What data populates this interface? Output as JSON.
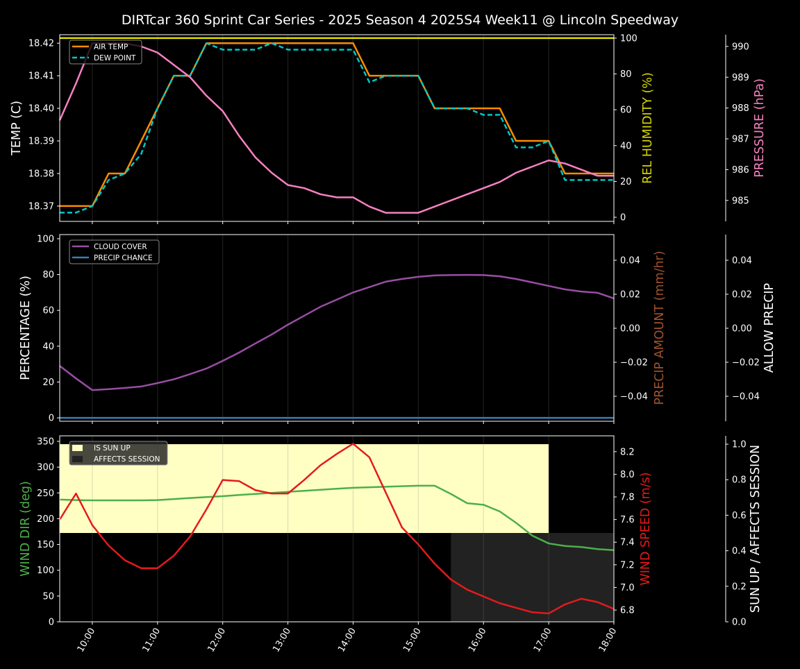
{
  "title": "DIRTcar 360 Sprint Car Series - 2025 Season 4 2025S4 Week11 @ Lincoln Speedway",
  "chart_data": [
    {
      "type": "line",
      "panel": "temperature",
      "x": [
        "09:30",
        "09:45",
        "10:00",
        "10:15",
        "10:30",
        "10:45",
        "11:00",
        "11:15",
        "11:30",
        "11:45",
        "12:00",
        "12:15",
        "12:30",
        "12:45",
        "13:00",
        "13:15",
        "13:30",
        "13:45",
        "14:00",
        "14:15",
        "14:30",
        "14:45",
        "15:00",
        "15:15",
        "15:30",
        "15:45",
        "16:00",
        "16:15",
        "16:30",
        "16:45",
        "17:00",
        "17:15",
        "17:30",
        "17:45",
        "18:00"
      ],
      "x_tick_labels": [
        "10:00",
        "11:00",
        "12:00",
        "13:00",
        "14:00",
        "15:00",
        "16:00",
        "17:00",
        "18:00"
      ],
      "ylabel": "TEMP (C)",
      "ylabel2": "REL HUMIDITY (%)",
      "ylabel3": "PRESSURE (hPa)",
      "ylim": [
        18.3653,
        18.4226
      ],
      "ylim2": [
        -2.3,
        101.9
      ],
      "ylim3": [
        984.32,
        990.38
      ],
      "yticks": [
        "18.37",
        "18.38",
        "18.39",
        "18.40",
        "18.41",
        "18.42"
      ],
      "yticks2": [
        "0",
        "20",
        "40",
        "60",
        "80",
        "100"
      ],
      "yticks3": [
        "985",
        "986",
        "987",
        "988",
        "989",
        "990"
      ],
      "legend": [
        "AIR TEMP",
        "DEW POINT"
      ],
      "legend_position": "top-left",
      "series": [
        {
          "name": "AIR TEMP",
          "axis": 1,
          "color": "#ff8c00",
          "values": [
            18.37,
            18.37,
            18.37,
            18.38,
            18.38,
            18.39,
            18.4,
            18.41,
            18.41,
            18.42,
            18.42,
            18.42,
            18.42,
            18.42,
            18.42,
            18.42,
            18.42,
            18.42,
            18.42,
            18.41,
            18.41,
            18.41,
            18.41,
            18.4,
            18.4,
            18.4,
            18.4,
            18.4,
            18.39,
            18.39,
            18.39,
            18.38,
            18.38,
            18.38,
            18.38
          ]
        },
        {
          "name": "DEW POINT",
          "axis": 1,
          "color": "#00c8c8",
          "dashed": true,
          "values": [
            18.368,
            18.368,
            18.37,
            18.378,
            18.38,
            18.386,
            18.4,
            18.41,
            18.41,
            18.42,
            18.418,
            18.418,
            18.418,
            18.42,
            18.418,
            18.418,
            18.418,
            18.418,
            18.418,
            18.408,
            18.41,
            18.41,
            18.41,
            18.4,
            18.4,
            18.4,
            18.398,
            18.398,
            18.388,
            18.388,
            18.39,
            18.378,
            18.378,
            18.378,
            18.378
          ]
        },
        {
          "name": "REL HUMIDITY",
          "axis": 2,
          "color": "#e0e000",
          "values": [
            100,
            100,
            100,
            100,
            100,
            100,
            100,
            100,
            100,
            100,
            100,
            100,
            100,
            100,
            100,
            100,
            100,
            100,
            100,
            100,
            100,
            100,
            100,
            100,
            100,
            100,
            100,
            100,
            100,
            100,
            100,
            100,
            100,
            100,
            100
          ]
        },
        {
          "name": "PRESSURE",
          "axis": 3,
          "color": "#f781bf",
          "values": [
            987.6,
            988.8,
            990.1,
            990.1,
            990.1,
            990.0,
            989.8,
            989.4,
            989.0,
            988.4,
            987.9,
            987.1,
            986.4,
            985.9,
            985.5,
            985.4,
            985.2,
            985.1,
            985.1,
            984.8,
            984.6,
            984.6,
            984.6,
            984.8,
            985.0,
            985.2,
            985.4,
            985.6,
            985.9,
            986.1,
            986.3,
            986.2,
            986.0,
            985.8,
            985.8
          ]
        }
      ]
    },
    {
      "type": "line",
      "panel": "precipitation",
      "ylabel": "PERCENTAGE (%)",
      "ylabel2": "PRECIP AMOUNT (mm/hr)",
      "ylabel3": "ALLOW PRECIP",
      "ylim": [
        -1.9,
        102.3
      ],
      "ylim2": [
        -0.0547,
        0.0551
      ],
      "ylim3": [
        -0.0547,
        0.0551
      ],
      "yticks": [
        "0",
        "20",
        "40",
        "60",
        "80",
        "100"
      ],
      "yticks2": [
        "−0.04",
        "−0.02",
        "0.00",
        "0.02",
        "0.04"
      ],
      "yticks3": [
        "−0.04",
        "−0.02",
        "0.00",
        "0.02",
        "0.04"
      ],
      "legend": [
        "CLOUD COVER",
        "PRECIP CHANCE"
      ],
      "legend_position": "top-left",
      "series": [
        {
          "name": "CLOUD COVER",
          "axis": 1,
          "color": "#984ea3",
          "values": [
            29,
            22,
            15.5,
            16,
            16.7,
            17.5,
            19.4,
            21.5,
            24.4,
            27.5,
            31.8,
            36.4,
            41.5,
            46.5,
            52,
            57,
            62,
            66,
            70,
            73,
            76,
            77.5,
            78.7,
            79.5,
            79.7,
            79.8,
            79.7,
            79,
            77.5,
            75.6,
            73.6,
            71.7,
            70.5,
            69.8,
            66.7
          ]
        },
        {
          "name": "PRECIP CHANCE",
          "axis": 1,
          "color": "#377eb8",
          "values": [
            0,
            0,
            0,
            0,
            0,
            0,
            0,
            0,
            0,
            0,
            0,
            0,
            0,
            0,
            0,
            0,
            0,
            0,
            0,
            0,
            0,
            0,
            0,
            0,
            0,
            0,
            0,
            0,
            0,
            0,
            0,
            0,
            0,
            0,
            0
          ]
        }
      ]
    },
    {
      "type": "line",
      "panel": "wind",
      "ylabel": "WIND DIR (deg)",
      "ylabel2": "WIND SPEED (m/s)",
      "ylabel3": "SUN UP / AFFECTS SESSION",
      "ylim": [
        0,
        360.7
      ],
      "ylim2": [
        6.696,
        8.34
      ],
      "ylim3": [
        0,
        1.047
      ],
      "yticks": [
        "0",
        "50",
        "100",
        "150",
        "200",
        "250",
        "300",
        "350"
      ],
      "yticks2": [
        "6.8",
        "7.0",
        "7.2",
        "7.4",
        "7.6",
        "7.8",
        "8.0",
        "8.2"
      ],
      "yticks3": [
        "0.0",
        "0.2",
        "0.4",
        "0.6",
        "0.8",
        "1.0"
      ],
      "legend": [
        "IS SUN UP",
        "AFFECTS SESSION"
      ],
      "legend_position": "top-left",
      "sun_up_until": "17:00",
      "affects_session_from": "15:30",
      "series": [
        {
          "name": "WIND DIR",
          "axis": 1,
          "color": "#4daf4a",
          "values": [
            237,
            236,
            235.5,
            235.5,
            235.5,
            235.5,
            236,
            238,
            240,
            242,
            243.6,
            246,
            248,
            250,
            252,
            254,
            256,
            258,
            260,
            261,
            262,
            263,
            264,
            264,
            248,
            230,
            227,
            214,
            192,
            167,
            152,
            147,
            145,
            141,
            139
          ]
        },
        {
          "name": "WIND SPEED",
          "axis": 2,
          "color": "#e41a1c",
          "values": [
            7.6,
            7.83,
            7.55,
            7.37,
            7.24,
            7.17,
            7.17,
            7.28,
            7.45,
            7.69,
            7.95,
            7.94,
            7.86,
            7.83,
            7.83,
            7.95,
            8.08,
            8.18,
            8.27,
            8.15,
            7.84,
            7.53,
            7.38,
            7.21,
            7.07,
            6.98,
            6.92,
            6.86,
            6.82,
            6.78,
            6.77,
            6.85,
            6.9,
            6.87,
            6.81
          ]
        }
      ]
    }
  ],
  "colors": {
    "sun_up": "#ffffc4",
    "affects_session": "#222222",
    "humidity_label": "#d4d400",
    "pressure_label": "#f781bf",
    "precip_amount_label": "#a0522d",
    "wind_dir_label": "#4daf4a",
    "wind_speed_label": "#e41a1c"
  }
}
